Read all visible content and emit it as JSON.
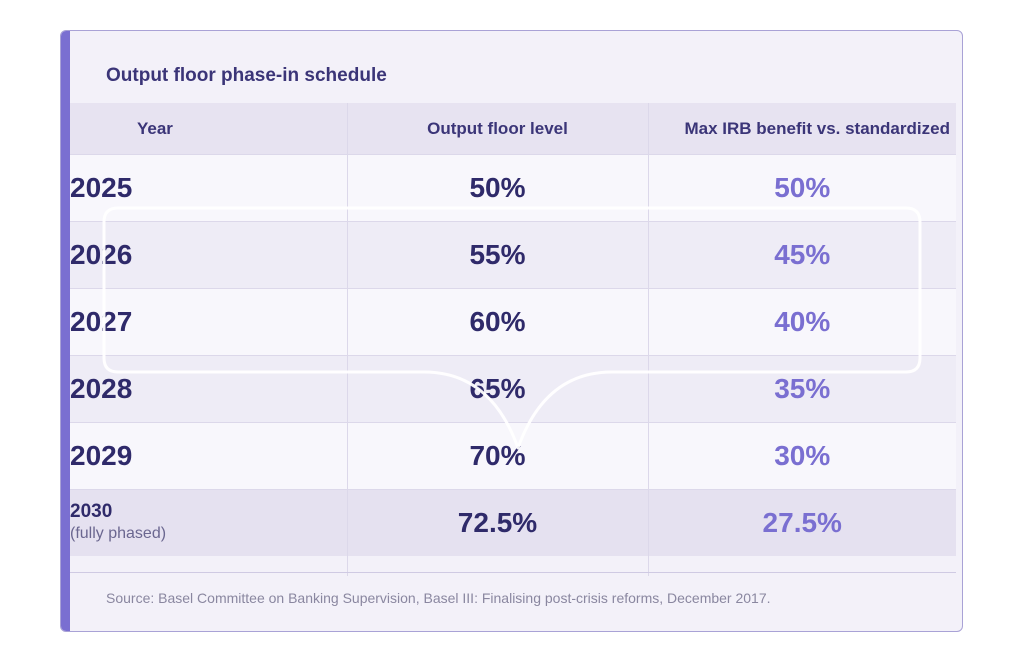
{
  "title": "Output floor phase-in schedule",
  "columns": {
    "year": "Year",
    "floor": "Output floor level",
    "benefit": "Max IRB benefit vs. standardized"
  },
  "rows": [
    {
      "year": "2025",
      "floor": "50%",
      "benefit": "50%"
    },
    {
      "year": "2026",
      "floor": "55%",
      "benefit": "45%"
    },
    {
      "year": "2027",
      "floor": "60%",
      "benefit": "40%"
    },
    {
      "year": "2028",
      "floor": "65%",
      "benefit": "35%"
    },
    {
      "year": "2029",
      "floor": "70%",
      "benefit": "30%"
    }
  ],
  "final_row": {
    "year": "2030",
    "note": "(fully phased)",
    "floor": "72.5%",
    "benefit": "27.5%"
  },
  "source": "Source: Basel Committee on Banking Supervision, Basel III: Finalising post-crisis reforms, December 2017.",
  "colors": {
    "accent": "#7a6fd1",
    "heading": "#3b3578",
    "benefit_text": "#7a6fd1",
    "card_background": "#f3f1f9"
  }
}
